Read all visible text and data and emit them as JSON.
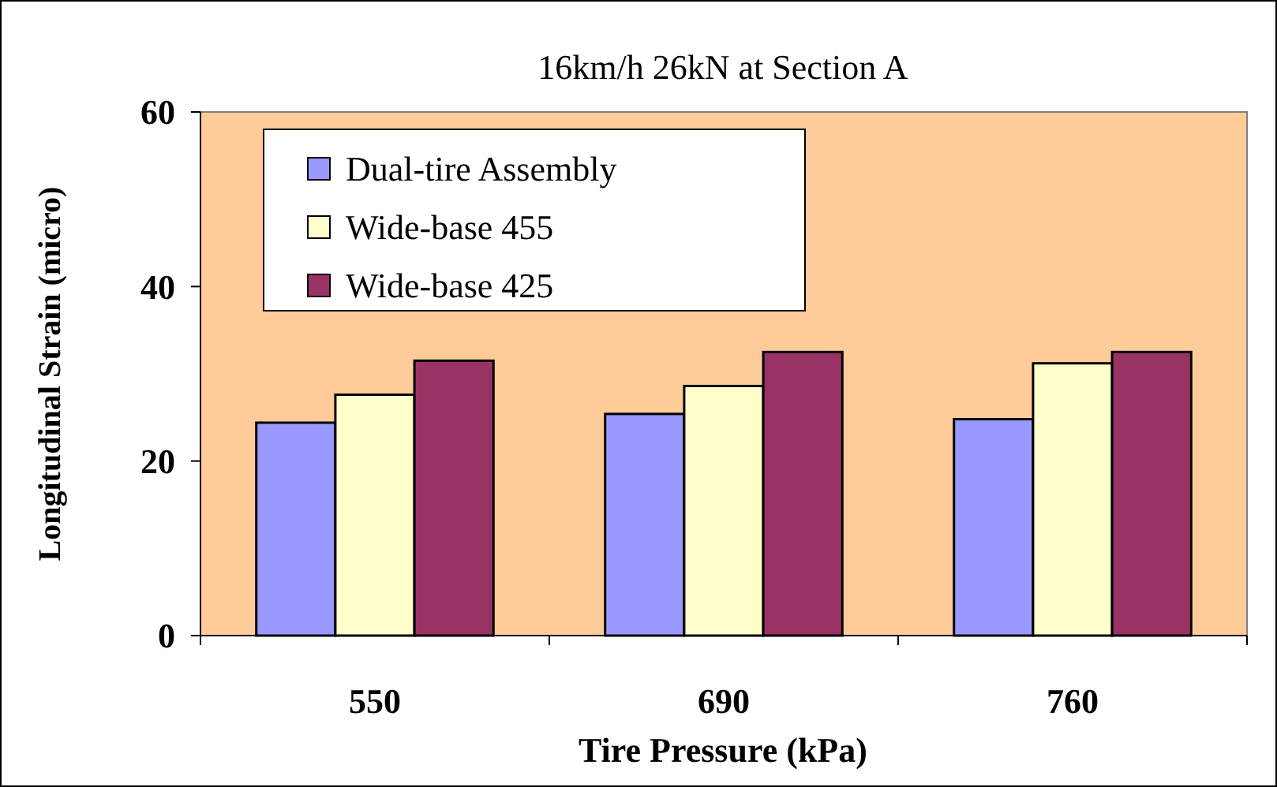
{
  "chart_data": {
    "type": "bar",
    "title": "16km/h 26kN at Section A",
    "xlabel": "Tire Pressure (kPa)",
    "ylabel": "Longitudinal Strain (micro)",
    "categories": [
      "550",
      "690",
      "760"
    ],
    "series": [
      {
        "name": "Dual-tire Assembly",
        "color": "#9999ff",
        "values": [
          24.4,
          25.4,
          24.8
        ]
      },
      {
        "name": "Wide-base 455",
        "color": "#ffffcc",
        "values": [
          27.6,
          28.6,
          31.2
        ]
      },
      {
        "name": "Wide-base 425",
        "color": "#993366",
        "values": [
          31.5,
          32.5,
          32.5
        ]
      }
    ],
    "ylim": [
      0,
      60
    ],
    "yticks": [
      0,
      20,
      40,
      60
    ],
    "grid": false,
    "legend": "top left"
  }
}
